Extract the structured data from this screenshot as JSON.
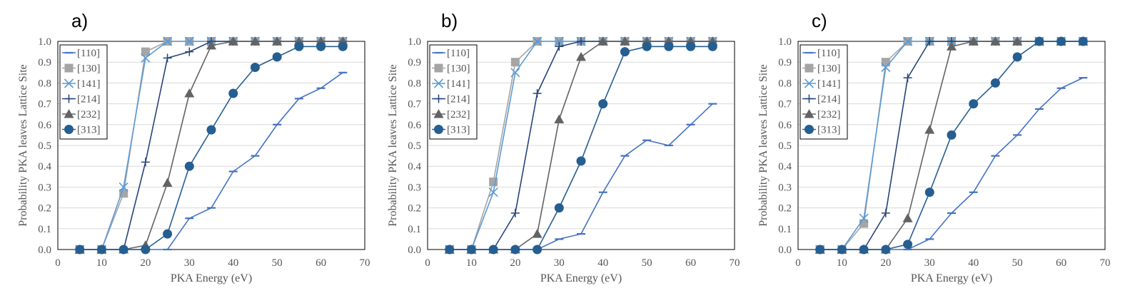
{
  "chart_data": [
    {
      "type": "line",
      "panel_label": "a)",
      "xlabel": "PKA Energy (eV)",
      "ylabel": "Probability PKA leaves Lattice Site",
      "xlim": [
        0,
        70
      ],
      "ylim": [
        0,
        1.0
      ],
      "x_ticks": [
        "0",
        "10",
        "20",
        "30",
        "40",
        "50",
        "60",
        "70"
      ],
      "y_ticks": [
        "0.0",
        "0.1",
        "0.2",
        "0.3",
        "0.4",
        "0.5",
        "0.6",
        "0.7",
        "0.8",
        "0.9",
        "1.0"
      ],
      "grid": true,
      "legend_position": "top-left",
      "series": [
        {
          "name": "[110]",
          "x": [
            5,
            10,
            15,
            20,
            25,
            30,
            35,
            40,
            45,
            50,
            55,
            60,
            65
          ],
          "values": [
            0,
            0,
            0,
            0,
            0,
            0.15,
            0.2,
            0.375,
            0.45,
            0.6,
            0.725,
            0.775,
            0.85
          ]
        },
        {
          "name": "[130]",
          "x": [
            5,
            10,
            15,
            20,
            25,
            30,
            35,
            40,
            45,
            50,
            55,
            60,
            65
          ],
          "values": [
            0,
            0,
            0.27,
            0.95,
            1,
            1,
            1,
            1,
            1,
            1,
            1,
            1,
            1
          ]
        },
        {
          "name": "[141]",
          "x": [
            5,
            10,
            15,
            20,
            25,
            30,
            35,
            40,
            45,
            50,
            55,
            60,
            65
          ],
          "values": [
            0,
            0,
            0.3,
            0.92,
            1,
            1,
            1,
            1,
            1,
            1,
            1,
            1,
            1
          ]
        },
        {
          "name": "[214]",
          "x": [
            5,
            10,
            15,
            20,
            25,
            30,
            35,
            40,
            45,
            50,
            55,
            60,
            65
          ],
          "values": [
            0,
            0,
            0,
            0.42,
            0.92,
            0.95,
            1,
            1,
            1,
            1,
            1,
            1,
            1
          ]
        },
        {
          "name": "[232]",
          "x": [
            5,
            10,
            15,
            20,
            25,
            30,
            35,
            40,
            45,
            50,
            55,
            60,
            65
          ],
          "values": [
            0,
            0,
            0,
            0.02,
            0.32,
            0.75,
            0.98,
            1,
            1,
            1,
            1,
            1,
            1
          ]
        },
        {
          "name": "[313]",
          "x": [
            5,
            10,
            15,
            20,
            25,
            30,
            35,
            40,
            45,
            50,
            55,
            60,
            65
          ],
          "values": [
            0,
            0,
            0,
            0,
            0.075,
            0.4,
            0.575,
            0.75,
            0.875,
            0.925,
            0.975,
            0.975,
            0.975
          ]
        }
      ]
    },
    {
      "type": "line",
      "panel_label": "b)",
      "xlabel": "PKA Energy (eV)",
      "ylabel": "Probability PKA leaves Lattice Site",
      "xlim": [
        0,
        70
      ],
      "ylim": [
        0,
        1.0
      ],
      "x_ticks": [
        "0",
        "10",
        "20",
        "30",
        "40",
        "50",
        "60",
        "70"
      ],
      "y_ticks": [
        "0.0",
        "0.1",
        "0.2",
        "0.3",
        "0.4",
        "0.5",
        "0.6",
        "0.7",
        "0.8",
        "0.9",
        "1.0"
      ],
      "grid": true,
      "legend_position": "top-left",
      "series": [
        {
          "name": "[110]",
          "x": [
            5,
            10,
            15,
            20,
            25,
            30,
            35,
            40,
            45,
            50,
            55,
            60,
            65
          ],
          "values": [
            0,
            0,
            0,
            0,
            0,
            0.05,
            0.075,
            0.275,
            0.45,
            0.525,
            0.5,
            0.6,
            0.7
          ]
        },
        {
          "name": "[130]",
          "x": [
            5,
            10,
            15,
            20,
            25,
            30,
            35,
            40,
            45,
            50,
            55,
            60,
            65
          ],
          "values": [
            0,
            0,
            0.325,
            0.9,
            1,
            1,
            1,
            1,
            1,
            1,
            1,
            1,
            1
          ]
        },
        {
          "name": "[141]",
          "x": [
            5,
            10,
            15,
            20,
            25,
            30,
            35,
            40,
            45,
            50,
            55,
            60,
            65
          ],
          "values": [
            0,
            0,
            0.275,
            0.85,
            1,
            1,
            1,
            1,
            1,
            1,
            1,
            1,
            1
          ]
        },
        {
          "name": "[214]",
          "x": [
            5,
            10,
            15,
            20,
            25,
            30,
            35,
            40,
            45,
            50,
            55,
            60,
            65
          ],
          "values": [
            0,
            0,
            0,
            0.175,
            0.75,
            0.975,
            1,
            1,
            1,
            1,
            1,
            1,
            1
          ]
        },
        {
          "name": "[232]",
          "x": [
            5,
            10,
            15,
            20,
            25,
            30,
            35,
            40,
            45,
            50,
            55,
            60,
            65
          ],
          "values": [
            0,
            0,
            0,
            0,
            0.075,
            0.625,
            0.925,
            1,
            1,
            1,
            1,
            1,
            1
          ]
        },
        {
          "name": "[313]",
          "x": [
            5,
            10,
            15,
            20,
            25,
            30,
            35,
            40,
            45,
            50,
            55,
            60,
            65
          ],
          "values": [
            0,
            0,
            0,
            0,
            0,
            0.2,
            0.425,
            0.7,
            0.95,
            0.975,
            0.975,
            0.975,
            0.975
          ]
        }
      ]
    },
    {
      "type": "line",
      "panel_label": "c)",
      "xlabel": "PKA Energy (eV)",
      "ylabel": "Probability PKA leaves Lattice Site",
      "xlim": [
        0,
        70
      ],
      "ylim": [
        0,
        1.0
      ],
      "x_ticks": [
        "0",
        "10",
        "20",
        "30",
        "40",
        "50",
        "60",
        "70"
      ],
      "y_ticks": [
        "0.0",
        "0.1",
        "0.2",
        "0.3",
        "0.4",
        "0.5",
        "0.6",
        "0.7",
        "0.8",
        "0.9",
        "1.0"
      ],
      "grid": true,
      "legend_position": "top-left",
      "series": [
        {
          "name": "[110]",
          "x": [
            5,
            10,
            15,
            20,
            25,
            30,
            35,
            40,
            45,
            50,
            55,
            60,
            65
          ],
          "values": [
            0,
            0,
            0,
            0,
            0,
            0.05,
            0.175,
            0.275,
            0.45,
            0.55,
            0.675,
            0.775,
            0.825
          ]
        },
        {
          "name": "[130]",
          "x": [
            5,
            10,
            15,
            20,
            25,
            30,
            35,
            40,
            45,
            50,
            55,
            60,
            65
          ],
          "values": [
            0,
            0,
            0.125,
            0.9,
            1,
            1,
            1,
            1,
            1,
            1,
            1,
            1,
            1
          ]
        },
        {
          "name": "[141]",
          "x": [
            5,
            10,
            15,
            20,
            25,
            30,
            35,
            40,
            45,
            50,
            55,
            60,
            65
          ],
          "values": [
            0,
            0,
            0.15,
            0.875,
            1,
            1,
            1,
            1,
            1,
            1,
            1,
            1,
            1
          ]
        },
        {
          "name": "[214]",
          "x": [
            5,
            10,
            15,
            20,
            25,
            30,
            35,
            40,
            45,
            50,
            55,
            60,
            65
          ],
          "values": [
            0,
            0,
            0,
            0.175,
            0.825,
            1,
            1,
            1,
            1,
            1,
            1,
            1,
            1
          ]
        },
        {
          "name": "[232]",
          "x": [
            5,
            10,
            15,
            20,
            25,
            30,
            35,
            40,
            45,
            50,
            55,
            60,
            65
          ],
          "values": [
            0,
            0,
            0,
            0,
            0.15,
            0.575,
            0.975,
            1,
            1,
            1,
            1,
            1,
            1
          ]
        },
        {
          "name": "[313]",
          "x": [
            5,
            10,
            15,
            20,
            25,
            30,
            35,
            40,
            45,
            50,
            55,
            60,
            65
          ],
          "values": [
            0,
            0,
            0,
            0,
            0.025,
            0.275,
            0.55,
            0.7,
            0.8,
            0.925,
            1,
            1,
            1
          ]
        }
      ]
    }
  ],
  "series_styles": [
    {
      "color": "#4472c4",
      "marker": "dash"
    },
    {
      "color": "#a5a5a5",
      "marker": "square"
    },
    {
      "color": "#5b9bd5",
      "marker": "x"
    },
    {
      "color": "#264478",
      "marker": "plus"
    },
    {
      "color": "#636363",
      "marker": "triangle"
    },
    {
      "color": "#255e91",
      "marker": "circle"
    }
  ]
}
